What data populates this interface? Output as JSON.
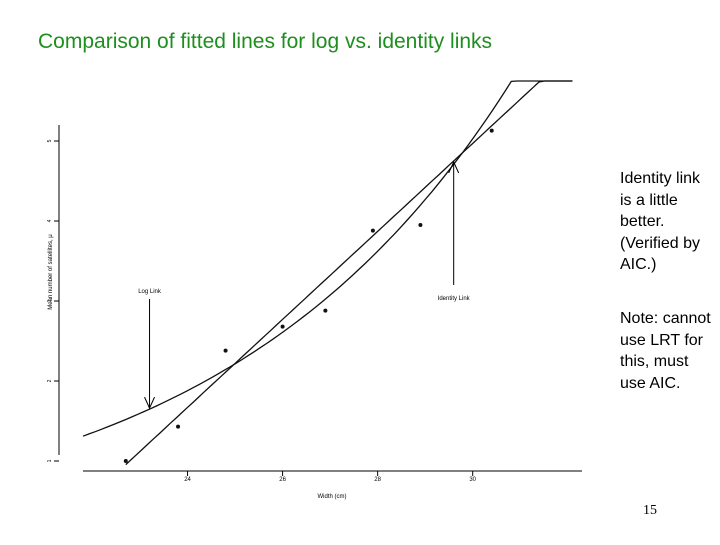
{
  "slide": {
    "title": "Comparison of fitted lines for log vs. identity links",
    "note1": "Identity link is a little better. (Verified by AIC.)",
    "note2": "Note: cannot use LRT for this, must use AIC.",
    "page_number": "15",
    "title_color": "#1e8f1e"
  },
  "chart_data": {
    "type": "scatter",
    "title": "",
    "xlabel": "Width (cm)",
    "ylabel": "Mean number of satellites, μ",
    "xlim": [
      21.8,
      32.3
    ],
    "ylim": [
      0.95,
      5.45
    ],
    "x_ticks": [
      24,
      26,
      28,
      30
    ],
    "y_ticks": [
      1,
      2,
      3,
      4,
      5
    ],
    "points": {
      "x": [
        22.7,
        23.8,
        24.8,
        26.0,
        26.9,
        27.9,
        28.9,
        30.4
      ],
      "y": [
        1.0,
        1.43,
        2.38,
        2.68,
        2.88,
        3.88,
        3.95,
        5.13
      ]
    },
    "series": [
      {
        "name": "Log Link",
        "kind": "curve",
        "a": -3.305,
        "b": 0.164,
        "x_range": [
          21.8,
          32.1
        ]
      },
      {
        "name": "Identity Link",
        "kind": "line",
        "intercept": -11.53,
        "slope": 0.55,
        "x_range": [
          22.7,
          32.1
        ]
      }
    ],
    "annotations": [
      {
        "text": "Log Link",
        "target_x": 23.2
      },
      {
        "text": "Identity Link",
        "target_x": 29.6
      }
    ]
  }
}
